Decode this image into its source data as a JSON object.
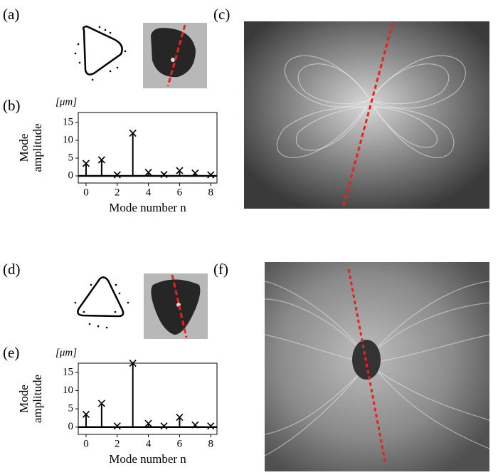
{
  "panel_labels": [
    "(a)",
    "(b)",
    "(c)",
    "(d)",
    "(e)",
    "(f)"
  ],
  "chart_data": [
    {
      "type": "stem",
      "unit_label": "[μm]",
      "ylabel_lines": [
        "Mode",
        "amplitude"
      ],
      "xlabel": "Mode number n",
      "x": [
        0,
        1,
        2,
        3,
        4,
        5,
        6,
        7,
        8
      ],
      "values": [
        3.5,
        4.5,
        0.3,
        12,
        1,
        0.4,
        1.5,
        0.8,
        0.3
      ],
      "color": "#000000",
      "xlim": [
        -0.5,
        8.4
      ],
      "ylim": [
        -2,
        17.8
      ],
      "xticks": [
        0,
        2,
        4,
        6,
        8
      ],
      "yticks": [
        0,
        5,
        10,
        15
      ]
    },
    {
      "type": "stem",
      "unit_label": "[μm]",
      "ylabel_lines": [
        "Mode",
        "amplitude"
      ],
      "xlabel": "Mode number n",
      "x": [
        0,
        1,
        2,
        3,
        4,
        5,
        6,
        7,
        8
      ],
      "values": [
        3.5,
        6.5,
        0.3,
        17.5,
        1,
        0.3,
        2.7,
        0.6,
        0.3
      ],
      "color": "#000000",
      "xlim": [
        -0.5,
        8.4
      ],
      "ylim": [
        -2,
        17.5
      ],
      "xticks": [
        0,
        2,
        4,
        6,
        8
      ],
      "yticks": [
        0,
        5,
        10,
        15
      ]
    }
  ]
}
